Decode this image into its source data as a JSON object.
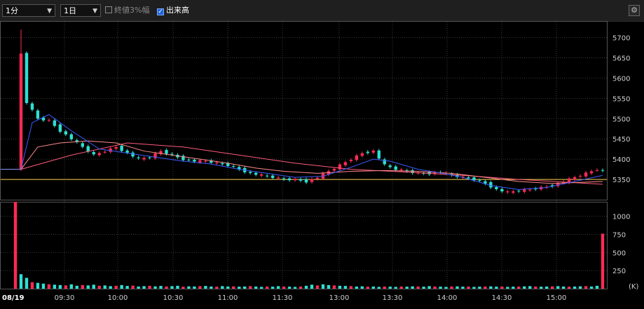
{
  "toolbar": {
    "interval": "1分",
    "period": "1日",
    "closing_range_label": "終値3%幅",
    "closing_range_checked": false,
    "volume_label": "出来高",
    "volume_checked": true
  },
  "chart_data": {
    "type": "candlestick",
    "price_axis": {
      "ticks": [
        5350,
        5400,
        5450,
        5500,
        5550,
        5600,
        5650,
        5700
      ],
      "ylim": [
        5300,
        5720
      ]
    },
    "volume_axis": {
      "ticks": [
        250,
        500,
        750,
        1000
      ],
      "unit": "(K)",
      "ylim": [
        0,
        1200
      ]
    },
    "date_label": "08/19",
    "time_ticks": [
      "09:30",
      "10:00",
      "10:30",
      "11:00",
      "11:30",
      "13:00",
      "13:30",
      "14:00",
      "14:30",
      "15:00"
    ],
    "reference_price": 5350,
    "price_path": [
      [
        0,
        5375
      ],
      [
        1,
        5660
      ],
      [
        2,
        5540
      ],
      [
        3,
        5520
      ],
      [
        4,
        5500
      ],
      [
        6,
        5495
      ],
      [
        8,
        5470
      ],
      [
        10,
        5450
      ],
      [
        12,
        5430
      ],
      [
        14,
        5410
      ],
      [
        16,
        5420
      ],
      [
        18,
        5430
      ],
      [
        20,
        5415
      ],
      [
        22,
        5400
      ],
      [
        24,
        5405
      ],
      [
        26,
        5420
      ],
      [
        28,
        5410
      ],
      [
        30,
        5400
      ],
      [
        32,
        5395
      ],
      [
        34,
        5395
      ],
      [
        36,
        5390
      ],
      [
        38,
        5385
      ],
      [
        40,
        5375
      ],
      [
        42,
        5365
      ],
      [
        44,
        5360
      ],
      [
        46,
        5355
      ],
      [
        48,
        5350
      ],
      [
        50,
        5350
      ],
      [
        52,
        5345
      ],
      [
        54,
        5355
      ],
      [
        56,
        5370
      ],
      [
        58,
        5385
      ],
      [
        60,
        5400
      ],
      [
        62,
        5415
      ],
      [
        64,
        5420
      ],
      [
        66,
        5385
      ],
      [
        68,
        5375
      ],
      [
        70,
        5370
      ],
      [
        72,
        5365
      ],
      [
        74,
        5365
      ],
      [
        76,
        5368
      ],
      [
        78,
        5360
      ],
      [
        80,
        5355
      ],
      [
        82,
        5350
      ],
      [
        84,
        5340
      ],
      [
        86,
        5325
      ],
      [
        88,
        5318
      ],
      [
        90,
        5322
      ],
      [
        92,
        5325
      ],
      [
        94,
        5330
      ],
      [
        96,
        5335
      ],
      [
        98,
        5345
      ],
      [
        100,
        5355
      ],
      [
        102,
        5365
      ],
      [
        104,
        5375
      ],
      [
        105,
        5370
      ]
    ],
    "ma_fast": [
      [
        1,
        5375
      ],
      [
        3,
        5490
      ],
      [
        6,
        5510
      ],
      [
        10,
        5470
      ],
      [
        15,
        5425
      ],
      [
        20,
        5415
      ],
      [
        25,
        5405
      ],
      [
        30,
        5395
      ],
      [
        35,
        5388
      ],
      [
        40,
        5375
      ],
      [
        45,
        5365
      ],
      [
        50,
        5355
      ],
      [
        55,
        5358
      ],
      [
        60,
        5380
      ],
      [
        64,
        5400
      ],
      [
        67,
        5395
      ],
      [
        72,
        5375
      ],
      [
        76,
        5366
      ],
      [
        80,
        5355
      ],
      [
        85,
        5335
      ],
      [
        90,
        5325
      ],
      [
        95,
        5330
      ],
      [
        100,
        5345
      ],
      [
        105,
        5360
      ]
    ],
    "ma_mid": [
      [
        1,
        5375
      ],
      [
        4,
        5430
      ],
      [
        8,
        5440
      ],
      [
        13,
        5445
      ],
      [
        18,
        5440
      ],
      [
        23,
        5420
      ],
      [
        28,
        5410
      ],
      [
        33,
        5400
      ],
      [
        38,
        5390
      ],
      [
        43,
        5378
      ],
      [
        48,
        5370
      ],
      [
        54,
        5365
      ],
      [
        60,
        5370
      ],
      [
        66,
        5372
      ],
      [
        72,
        5370
      ],
      [
        78,
        5365
      ],
      [
        84,
        5355
      ],
      [
        90,
        5345
      ],
      [
        96,
        5340
      ],
      [
        105,
        5345
      ]
    ],
    "ma_slow": [
      [
        1,
        5375
      ],
      [
        10,
        5410
      ],
      [
        20,
        5440
      ],
      [
        30,
        5430
      ],
      [
        40,
        5410
      ],
      [
        50,
        5390
      ],
      [
        60,
        5375
      ],
      [
        70,
        5368
      ],
      [
        80,
        5360
      ],
      [
        90,
        5350
      ],
      [
        105,
        5338
      ]
    ],
    "volume": [
      1200,
      200,
      150,
      90,
      80,
      70,
      60,
      55,
      50,
      45,
      60,
      40,
      50,
      45,
      55,
      40,
      45,
      35,
      40,
      50,
      38,
      42,
      30,
      35,
      40,
      32,
      38,
      30,
      35,
      40,
      28,
      32,
      30,
      35,
      38,
      30,
      28,
      35,
      30,
      32,
      28,
      30,
      35,
      30,
      25,
      30,
      28,
      35,
      30,
      28,
      25,
      30,
      40,
      55,
      45,
      60,
      50,
      45,
      40,
      38,
      35,
      30,
      32,
      28,
      30,
      25,
      30,
      28,
      25,
      30,
      28,
      32,
      30,
      28,
      35,
      30,
      28,
      25,
      30,
      32,
      28,
      30,
      25,
      28,
      30,
      32,
      28,
      30,
      25,
      28,
      30,
      32,
      35,
      30,
      28,
      30,
      32,
      35,
      30,
      28,
      30,
      32,
      35,
      30,
      40,
      760
    ]
  },
  "colors": {
    "up": "#ff2a55",
    "down": "#2de0d2",
    "ma_fast": "#3b5bff",
    "ma_mid": "#ff8a8a",
    "ma_slow": "#ff5a7a",
    "ref": "#ffd24d",
    "grid": "#3a3a3a"
  }
}
